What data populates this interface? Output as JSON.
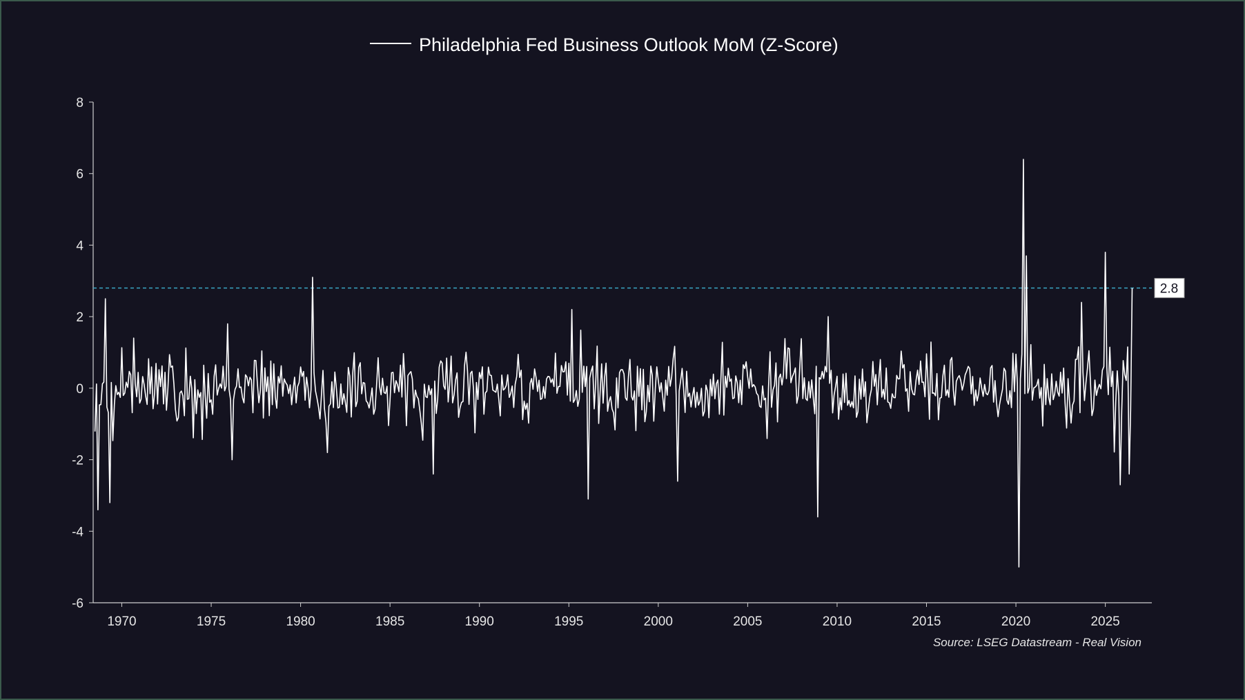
{
  "chart_data": {
    "type": "line",
    "title": "",
    "xlabel": "",
    "ylabel": "",
    "legend": {
      "position": "top-center",
      "entries": [
        "Philadelphia Fed Business Outlook MoM (Z-Score)"
      ]
    },
    "source": "Source: LSEG Datastream - Real Vision",
    "x_range": [
      1968.4,
      2027.6
    ],
    "ylim": [
      -6,
      8
    ],
    "y_ticks": [
      -6,
      -4,
      -2,
      0,
      2,
      4,
      6,
      8
    ],
    "x_ticks": [
      1970,
      1975,
      1980,
      1985,
      1990,
      1995,
      2000,
      2005,
      2010,
      2015,
      2020,
      2025
    ],
    "grid": false,
    "reference_line": {
      "value": 2.8,
      "label": "2.8",
      "color": "#3aa6c4",
      "style": "dashed"
    },
    "series": [
      {
        "name": "Philadelphia Fed Business Outlook MoM (Z-Score)",
        "color": "#ffffff",
        "frequency": "monthly",
        "x_start": 1968.5,
        "x_end": 2026.5,
        "key_points": [
          {
            "x": 1968.7,
            "y": -3.4
          },
          {
            "x": 1969.1,
            "y": 2.5
          },
          {
            "x": 1969.3,
            "y": -3.2
          },
          {
            "x": 1975.9,
            "y": 1.8
          },
          {
            "x": 1976.2,
            "y": -2.0
          },
          {
            "x": 1980.7,
            "y": 3.1
          },
          {
            "x": 1981.5,
            "y": -1.8
          },
          {
            "x": 1987.4,
            "y": -2.4
          },
          {
            "x": 1995.2,
            "y": 2.2
          },
          {
            "x": 1996.1,
            "y": -3.1
          },
          {
            "x": 2001.1,
            "y": -2.6
          },
          {
            "x": 2008.9,
            "y": -3.6
          },
          {
            "x": 2009.5,
            "y": 2.0
          },
          {
            "x": 2020.2,
            "y": -5.0
          },
          {
            "x": 2020.4,
            "y": 6.4
          },
          {
            "x": 2020.6,
            "y": 3.7
          },
          {
            "x": 2023.7,
            "y": 2.4
          },
          {
            "x": 2025.0,
            "y": 3.8
          },
          {
            "x": 2025.8,
            "y": -2.7
          },
          {
            "x": 2026.3,
            "y": -2.4
          },
          {
            "x": 2026.5,
            "y": 2.8
          }
        ]
      }
    ]
  }
}
